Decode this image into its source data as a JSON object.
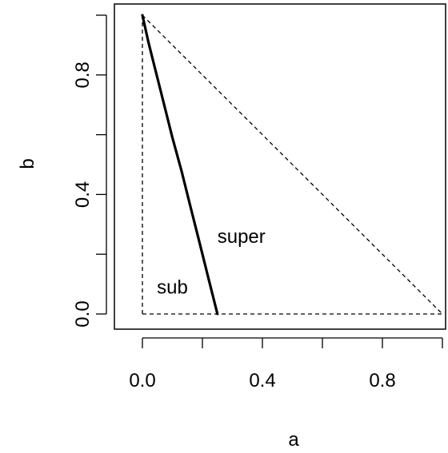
{
  "chart_data": {
    "type": "line",
    "title": "",
    "xlabel": "a",
    "ylabel": "b",
    "xlim": [
      0,
      1
    ],
    "ylim": [
      0,
      1
    ],
    "x_ticks": [
      0.0,
      0.2,
      0.4,
      0.6,
      0.8,
      1.0
    ],
    "x_tick_labels": [
      "0.0",
      "0.4",
      "0.8"
    ],
    "y_ticks": [
      0.0,
      0.2,
      0.4,
      0.6,
      0.8,
      1.0
    ],
    "y_tick_labels": [
      "0.0",
      "0.4",
      "0.8"
    ],
    "grid": false,
    "legend": "none",
    "series": [
      {
        "style": "solid-thick",
        "color": "#000000",
        "x": [
          0.0,
          0.02,
          0.04,
          0.07,
          0.1,
          0.13,
          0.16,
          0.19,
          0.22,
          0.25
        ],
        "y": [
          1.0,
          0.91,
          0.83,
          0.71,
          0.59,
          0.48,
          0.36,
          0.24,
          0.12,
          0.0
        ]
      },
      {
        "style": "dashed",
        "color": "#000000",
        "x": [
          0.0,
          1.0
        ],
        "y": [
          1.0,
          0.0
        ]
      },
      {
        "style": "dashed",
        "color": "#000000",
        "x": [
          0.0,
          0.0
        ],
        "y": [
          1.0,
          0.0
        ]
      },
      {
        "style": "dashed",
        "color": "#000000",
        "x": [
          0.0,
          1.0
        ],
        "y": [
          0.0,
          0.0
        ]
      }
    ],
    "annotations": [
      {
        "text": "super",
        "x": 0.33,
        "y": 0.26
      },
      {
        "text": "sub",
        "x": 0.1,
        "y": 0.09
      }
    ]
  }
}
